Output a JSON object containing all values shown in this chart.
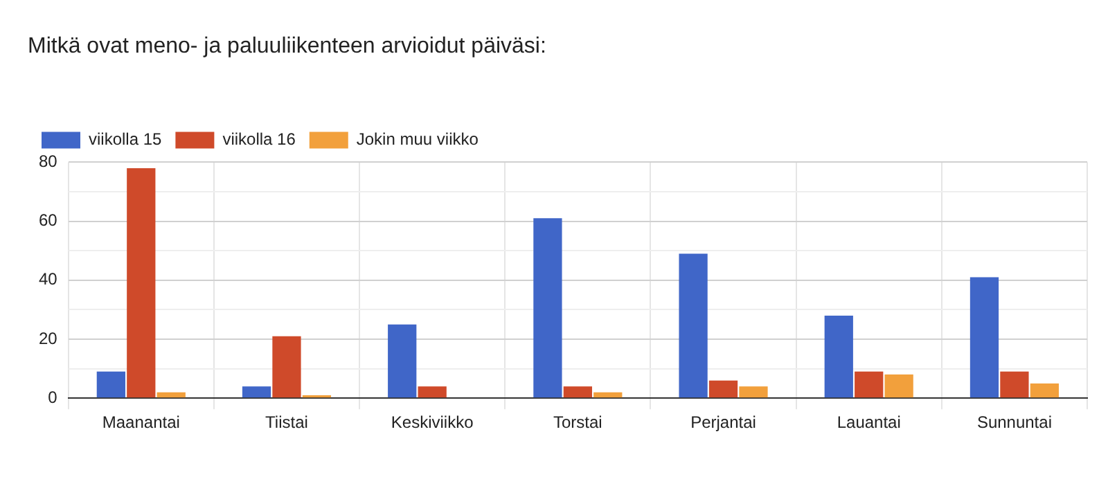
{
  "chart_data": {
    "type": "bar",
    "title": "Mitkä ovat meno- ja paluuliikenteen arvioidut päiväsi:",
    "categories": [
      "Maanantai",
      "Tiistai",
      "Keskiviikko",
      "Torstai",
      "Perjantai",
      "Lauantai",
      "Sunnuntai"
    ],
    "series": [
      {
        "name": "viikolla 15",
        "color": "#4066c8",
        "values": [
          9,
          4,
          25,
          61,
          49,
          28,
          41
        ]
      },
      {
        "name": "viikolla 16",
        "color": "#cf4a2a",
        "values": [
          78,
          21,
          4,
          4,
          6,
          9,
          9
        ]
      },
      {
        "name": "Jokin muu viikko",
        "color": "#f2a03c",
        "values": [
          2,
          1,
          0,
          2,
          4,
          8,
          5
        ]
      }
    ],
    "ylim": [
      0,
      80
    ],
    "yticks": [
      0,
      {
        "value": 10,
        "label": null
      },
      20,
      {
        "value": 30,
        "label": null
      },
      40,
      {
        "value": 50,
        "label": null
      },
      60,
      {
        "value": 70,
        "label": null
      },
      80
    ],
    "grid": true,
    "legend": "top left"
  }
}
